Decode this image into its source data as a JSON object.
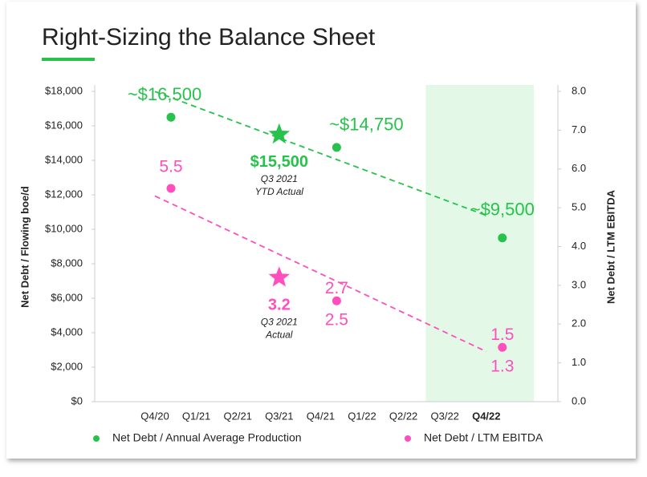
{
  "chart_data": {
    "type": "dual-axis-scatter",
    "title": "Right-Sizing the Balance Sheet",
    "y_label": "Net Debt / Flowing boe/d",
    "y2_label": "Net Debt / LTM EBITDA",
    "categories": [
      "Q4/20",
      "Q1/21",
      "Q2/21",
      "Q3/21",
      "Q4/21",
      "Q1/22",
      "Q2/22",
      "Q3/22",
      "Q4/22"
    ],
    "highlight": "Q4/22",
    "ylim": [
      0,
      18000
    ],
    "yticks": [
      {
        "value": 0,
        "label": "$0"
      },
      {
        "value": 2000,
        "label": "$2,000"
      },
      {
        "value": 4000,
        "label": "$4,000"
      },
      {
        "value": 6000,
        "label": "$6,000"
      },
      {
        "value": 8000,
        "label": "$8,000"
      },
      {
        "value": 10000,
        "label": "$10,000"
      },
      {
        "value": 12000,
        "label": "$12,000"
      },
      {
        "value": 14000,
        "label": "$14,000"
      },
      {
        "value": 16000,
        "label": "$16,000"
      },
      {
        "value": 18000,
        "label": "$18,000"
      }
    ],
    "y2lim": [
      0,
      8
    ],
    "y2ticks": [
      {
        "value": 0,
        "label": "0.0"
      },
      {
        "value": 1,
        "label": "1.0"
      },
      {
        "value": 2,
        "label": "2.0"
      },
      {
        "value": 3,
        "label": "3.0"
      },
      {
        "value": 4,
        "label": "4.0"
      },
      {
        "value": 5,
        "label": "5.0"
      },
      {
        "value": 6,
        "label": "6.0"
      },
      {
        "value": 7,
        "label": "7.0"
      },
      {
        "value": 8,
        "label": "8.0"
      }
    ],
    "series": [
      {
        "name": "Net Debt / Annual Average Production",
        "color": "#27c24c",
        "values": [
          16500,
          null,
          null,
          null,
          14750,
          null,
          null,
          null,
          9500
        ],
        "value_labels": [
          "~$16,500",
          null,
          null,
          null,
          "~$14,750",
          null,
          null,
          null,
          "~$9,500"
        ],
        "actual": {
          "category": "Q3/21",
          "value": 15500,
          "label": "$15,500",
          "note": [
            "Q3 2021",
            "YTD Actual"
          ]
        }
      },
      {
        "name": "Net Debt / LTM EBITDA",
        "color": "#ff4fbf",
        "axis": "y2",
        "values": [
          5.5,
          null,
          null,
          null,
          2.6,
          null,
          null,
          null,
          1.4
        ],
        "high": [
          null,
          null,
          null,
          null,
          2.7,
          null,
          null,
          null,
          1.5
        ],
        "low": [
          null,
          null,
          null,
          null,
          2.5,
          null,
          null,
          null,
          1.3
        ],
        "actual": {
          "category": "Q3/21",
          "value": 3.2,
          "note": [
            "Q3 2021",
            "Actual"
          ]
        }
      }
    ]
  }
}
